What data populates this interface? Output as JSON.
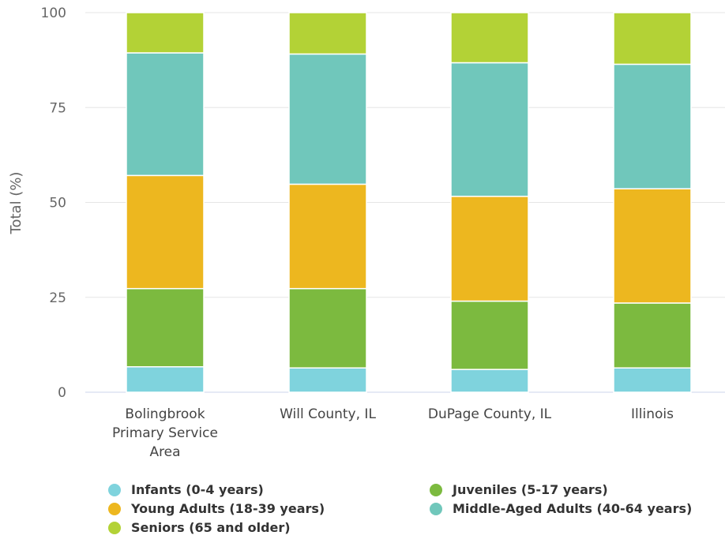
{
  "chart_data": {
    "type": "bar",
    "stacked": true,
    "categories": [
      [
        "Bolingbrook",
        "Primary Service",
        "Area"
      ],
      [
        "Will County, IL"
      ],
      [
        "DuPage County, IL"
      ],
      [
        "Illinois"
      ]
    ],
    "ylabel": "Total (%)",
    "xlabel": "",
    "ylim": [
      0,
      100
    ],
    "yticks": [
      0,
      25,
      50,
      75,
      100
    ],
    "grid": true,
    "legend_position": "bottom",
    "series": [
      {
        "name": "Infants (0-4 years)",
        "color": "#7fd3dd",
        "values": [
          6.7,
          6.4,
          6.0,
          6.4
        ]
      },
      {
        "name": "Juveniles (5-17 years)",
        "color": "#7cba3f",
        "values": [
          20.6,
          20.9,
          18.0,
          17.1
        ]
      },
      {
        "name": "Young Adults (18-39 years)",
        "color": "#edb71f",
        "values": [
          29.8,
          27.5,
          27.6,
          30.1
        ]
      },
      {
        "name": "Middle-Aged Adults (40-64 years)",
        "color": "#70c7bb",
        "values": [
          32.3,
          34.3,
          35.2,
          32.8
        ]
      },
      {
        "name": "Seniors (65 and older)",
        "color": "#b3d236",
        "values": [
          10.6,
          10.9,
          13.2,
          13.6
        ]
      }
    ]
  }
}
